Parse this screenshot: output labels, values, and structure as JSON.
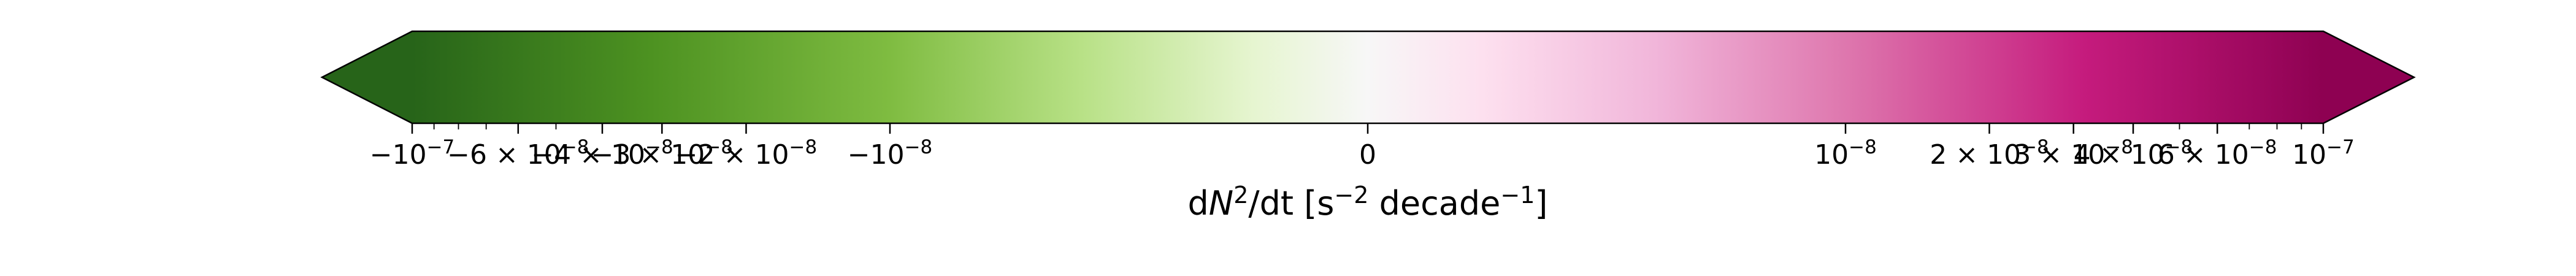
{
  "chart_data": {
    "type": "colorbar",
    "orientation": "horizontal",
    "scale": "symlog",
    "extend": "both",
    "colormap": "PiYG_r",
    "value_range": [
      -1e-07,
      1e-07
    ],
    "color_stops": [
      {
        "value": -1.0,
        "color": "#276419"
      },
      {
        "value": -0.75,
        "color": "#4d9221"
      },
      {
        "value": -0.5,
        "color": "#7fbc41"
      },
      {
        "value": -0.3,
        "color": "#b8e186"
      },
      {
        "value": -0.12,
        "color": "#e6f5d0"
      },
      {
        "value": 0.0,
        "color": "#f7f7f7"
      },
      {
        "value": 0.12,
        "color": "#fde0ef"
      },
      {
        "value": 0.3,
        "color": "#f1b6da"
      },
      {
        "value": 0.5,
        "color": "#de77ae"
      },
      {
        "value": 0.75,
        "color": "#c51b7d"
      },
      {
        "value": 1.0,
        "color": "#8e0152"
      }
    ],
    "major_ticks": [
      {
        "value": -1e-07,
        "label_base": "−10",
        "label_exp": "−7"
      },
      {
        "value": -6e-08,
        "label_base": "−6 × 10",
        "label_exp": "−8"
      },
      {
        "value": -4e-08,
        "label_base": "−4 × 10",
        "label_exp": "−8"
      },
      {
        "value": -3e-08,
        "label_base": "−3 × 10",
        "label_exp": "−8"
      },
      {
        "value": -2e-08,
        "label_base": "−2 × 10",
        "label_exp": "−8"
      },
      {
        "value": -1e-08,
        "label_base": "−10",
        "label_exp": "−8"
      },
      {
        "value": 0,
        "label_base": "0",
        "label_exp": ""
      },
      {
        "value": 1e-08,
        "label_base": "10",
        "label_exp": "−8"
      },
      {
        "value": 2e-08,
        "label_base": "2 × 10",
        "label_exp": "−8"
      },
      {
        "value": 3e-08,
        "label_base": "3 × 10",
        "label_exp": "−8"
      },
      {
        "value": 4e-08,
        "label_base": "4 × 10",
        "label_exp": "−8"
      },
      {
        "value": 6e-08,
        "label_base": "6 × 10",
        "label_exp": "−8"
      },
      {
        "value": 1e-07,
        "label_base": "10",
        "label_exp": "−7"
      }
    ],
    "minor_ticks": [
      -9e-08,
      -8e-08,
      -7e-08,
      -5e-08,
      5e-08,
      7e-08,
      8e-08,
      9e-08
    ],
    "xlabel": {
      "prefix": "d",
      "var": "N",
      "var_exp": "2",
      "mid": "/dt [s",
      "unit_exp1": "−2",
      "mid2": " decade",
      "unit_exp2": "−1",
      "suffix": "]"
    }
  }
}
